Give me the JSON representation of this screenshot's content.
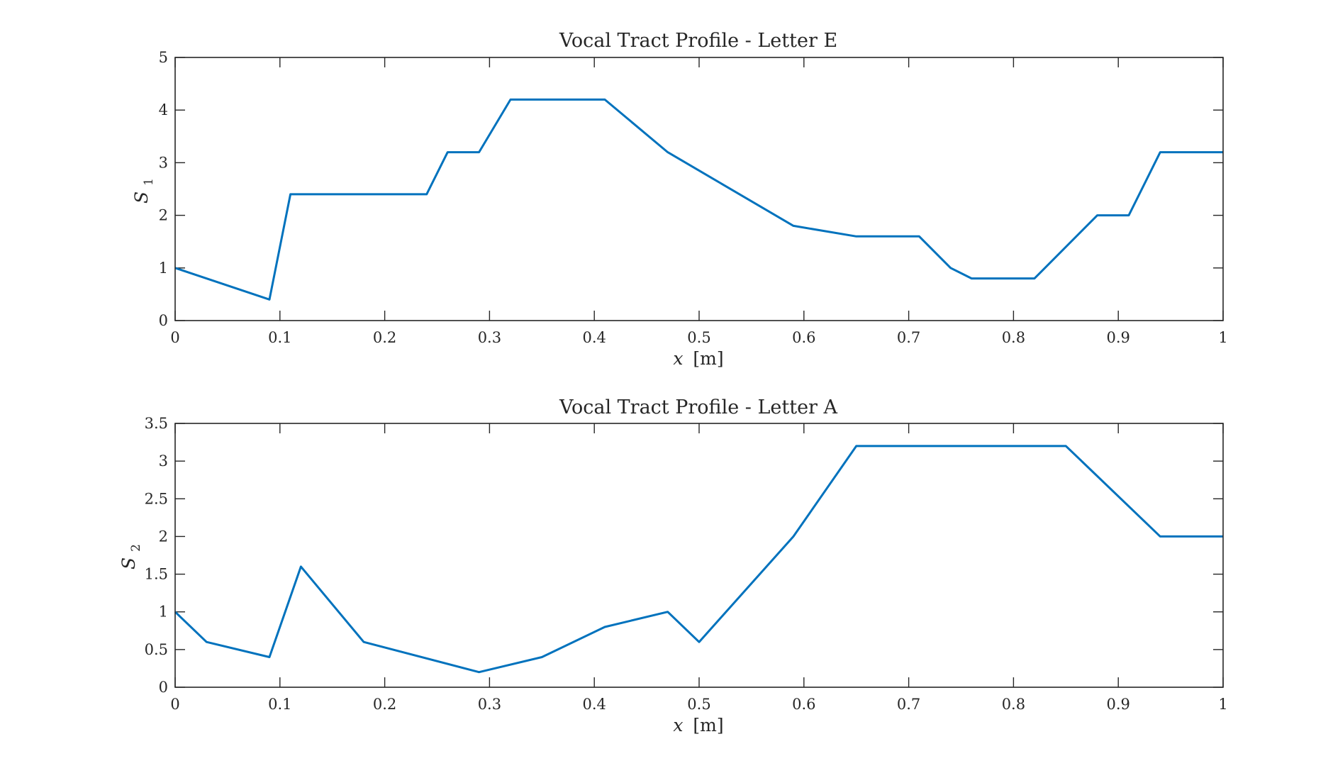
{
  "chart_data": [
    {
      "type": "line",
      "title": "Vocal Tract Profile - Letter E",
      "xlabel_var": "x",
      "xlabel_unit": "[m]",
      "ylabel_var": "S",
      "ylabel_sub": "1",
      "xlim": [
        0,
        1
      ],
      "ylim": [
        0,
        5
      ],
      "xticks": [
        0,
        0.1,
        0.2,
        0.3,
        0.4,
        0.5,
        0.6,
        0.7,
        0.8,
        0.9,
        1
      ],
      "xtick_labels": [
        "0",
        "0.1",
        "0.2",
        "0.3",
        "0.4",
        "0.5",
        "0.6",
        "0.7",
        "0.8",
        "0.9",
        "1"
      ],
      "yticks": [
        0,
        1,
        2,
        3,
        4,
        5
      ],
      "ytick_labels": [
        "0",
        "1",
        "2",
        "3",
        "4",
        "5"
      ],
      "grid": false,
      "line_color": "#0072BD",
      "series": [
        {
          "x": [
            0,
            0.09,
            0.11,
            0.24,
            0.26,
            0.29,
            0.32,
            0.41,
            0.47,
            0.59,
            0.65,
            0.71,
            0.74,
            0.76,
            0.82,
            0.88,
            0.91,
            0.94,
            1.0
          ],
          "y": [
            1.0,
            0.4,
            2.4,
            2.4,
            3.2,
            3.2,
            4.2,
            4.2,
            3.2,
            1.8,
            1.6,
            1.6,
            1.0,
            0.8,
            0.8,
            2.0,
            2.0,
            3.2,
            3.2
          ]
        }
      ]
    },
    {
      "type": "line",
      "title": "Vocal Tract Profile - Letter A",
      "xlabel_var": "x",
      "xlabel_unit": "[m]",
      "ylabel_var": "S",
      "ylabel_sub": "2",
      "xlim": [
        0,
        1
      ],
      "ylim": [
        0,
        3.5
      ],
      "xticks": [
        0,
        0.1,
        0.2,
        0.3,
        0.4,
        0.5,
        0.6,
        0.7,
        0.8,
        0.9,
        1
      ],
      "xtick_labels": [
        "0",
        "0.1",
        "0.2",
        "0.3",
        "0.4",
        "0.5",
        "0.6",
        "0.7",
        "0.8",
        "0.9",
        "1"
      ],
      "yticks": [
        0,
        0.5,
        1,
        1.5,
        2,
        2.5,
        3,
        3.5
      ],
      "ytick_labels": [
        "0",
        "0.5",
        "1",
        "1.5",
        "2",
        "2.5",
        "3",
        "3.5"
      ],
      "grid": false,
      "line_color": "#0072BD",
      "series": [
        {
          "x": [
            0,
            0.03,
            0.09,
            0.12,
            0.18,
            0.29,
            0.35,
            0.41,
            0.47,
            0.5,
            0.59,
            0.65,
            0.85,
            0.94,
            1.0
          ],
          "y": [
            1.0,
            0.6,
            0.4,
            1.6,
            0.6,
            0.2,
            0.4,
            0.8,
            1.0,
            0.6,
            2.0,
            3.2,
            3.2,
            2.0,
            2.0
          ]
        }
      ]
    }
  ]
}
